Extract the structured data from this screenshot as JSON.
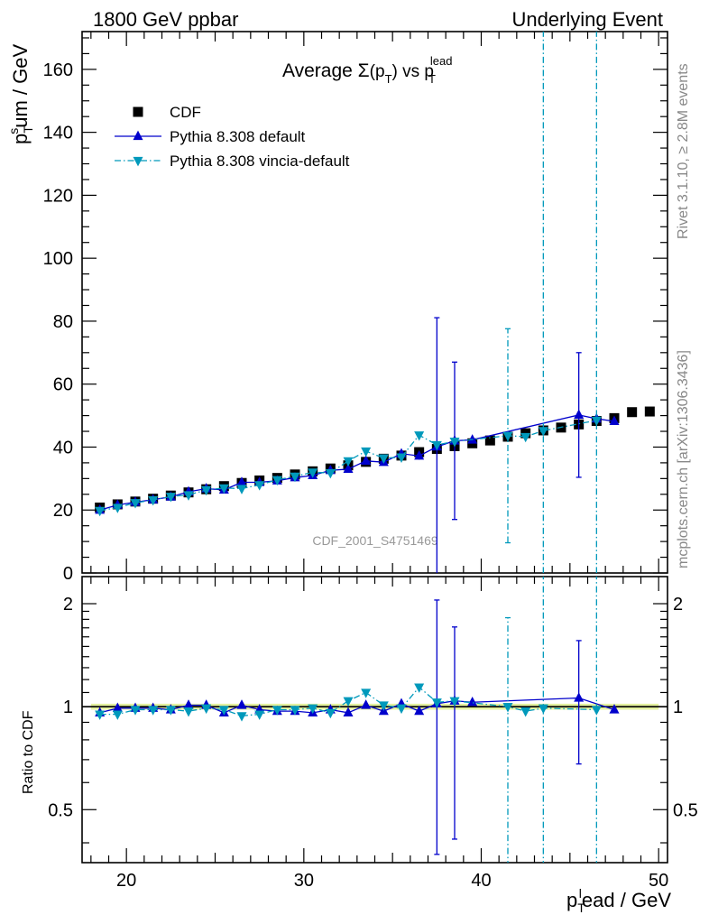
{
  "header": {
    "left": "1800 GeV ppbar",
    "right": "Underlying Event"
  },
  "side_text": {
    "rivet": "Rivet 3.1.10, ≥ 2.8M events",
    "mcplots": "mcplots.cern.ch [arXiv:1306.3436]"
  },
  "watermark": "CDF_2001_S4751469",
  "main_title": {
    "prefix": "Average ",
    "sigma": "Σ",
    "open": "(p",
    "sub_t": "T",
    "close": ") vs p",
    "sub_t2": "T",
    "sup_lead": "lead"
  },
  "labels": {
    "ylabel_main": {
      "p": "p",
      "sub": "T",
      "sup": "s",
      "rest": "um / GeV"
    },
    "ylabel_ratio": "Ratio to CDF",
    "xlabel": {
      "p": "p",
      "sub": "T",
      "sup": "l",
      "rest": "ead / GeV"
    }
  },
  "chart_data": [
    {
      "type": "scatter",
      "panel": "main",
      "xlim": [
        17.5,
        50.5
      ],
      "ylim": [
        0,
        172
      ],
      "x_ticks": [
        20,
        30,
        40,
        50
      ],
      "y_ticks": [
        0,
        20,
        40,
        60,
        80,
        100,
        120,
        140,
        160
      ],
      "y_tick_labels": [
        "0",
        "20",
        "40",
        "60",
        "80",
        "100",
        "120",
        "140",
        "160"
      ],
      "legend_position": "top-left",
      "series": [
        {
          "name": "CDF",
          "color": "#000000",
          "marker": "square",
          "line": "none",
          "x": [
            18.5,
            19.5,
            20.5,
            21.5,
            22.5,
            23.5,
            24.5,
            25.5,
            26.5,
            27.5,
            28.5,
            29.5,
            30.5,
            31.5,
            32.5,
            33.5,
            34.5,
            35.5,
            36.5,
            37.5,
            38.5,
            39.5,
            40.5,
            41.5,
            42.5,
            43.5,
            44.5,
            45.5,
            46.5,
            47.5,
            48.5,
            49.5
          ],
          "y": [
            20.8,
            21.8,
            22.7,
            23.6,
            24.6,
            25.6,
            26.6,
            27.6,
            28.6,
            29.4,
            30.2,
            31.3,
            32.3,
            33.2,
            34.2,
            35.3,
            36.3,
            37.3,
            38.4,
            39.4,
            40.3,
            41.2,
            42.1,
            43.3,
            44.4,
            45.3,
            46.2,
            47.2,
            48.3,
            49.2,
            51.1,
            51.3
          ]
        },
        {
          "name": "Pythia 8.308 default",
          "color": "#0000cc",
          "marker": "triangle-up",
          "line": "solid",
          "x": [
            18.5,
            19.5,
            20.5,
            21.5,
            22.5,
            23.5,
            24.5,
            25.5,
            26.5,
            27.5,
            28.5,
            29.5,
            30.5,
            31.5,
            32.5,
            33.5,
            34.5,
            35.5,
            36.5,
            37.5,
            38.5,
            39.5,
            45.5,
            46.5,
            47.5
          ],
          "y": [
            20.0,
            21.6,
            22.5,
            23.3,
            24.2,
            25.8,
            26.8,
            26.4,
            28.8,
            28.8,
            29.3,
            30.3,
            31.0,
            32.6,
            33.0,
            35.6,
            35.2,
            37.9,
            37.2,
            40.1,
            42.0,
            42.3,
            50.2,
            49.0,
            48.2
          ],
          "err": [
            0.6,
            0.6,
            0.6,
            0.6,
            0.6,
            0.7,
            0.7,
            0.7,
            0.7,
            0.7,
            0.8,
            0.8,
            0.8,
            0.9,
            0.9,
            1.0,
            1.0,
            1.2,
            1.2,
            41.0,
            25.0,
            1.0,
            19.8,
            1.0,
            1.0
          ]
        },
        {
          "name": "Pythia 8.308 vincia-default",
          "color": "#0099bb",
          "marker": "triangle-down",
          "line": "dash-dot",
          "x": [
            18.5,
            19.5,
            20.5,
            21.5,
            22.5,
            23.5,
            24.5,
            25.5,
            26.5,
            27.5,
            28.5,
            29.5,
            30.5,
            31.5,
            32.5,
            33.5,
            34.5,
            35.5,
            36.5,
            37.5,
            38.5,
            41.5,
            42.5,
            43.5,
            46.5
          ],
          "y": [
            19.8,
            20.8,
            22.3,
            23.2,
            24.3,
            24.8,
            26.4,
            27.0,
            26.8,
            28.0,
            29.6,
            30.7,
            32.0,
            31.8,
            35.6,
            38.7,
            36.5,
            36.8,
            43.8,
            40.7,
            41.8,
            43.6,
            43.3,
            45.2,
            48.5
          ],
          "err": [
            0.6,
            0.6,
            0.6,
            0.6,
            0.6,
            0.7,
            0.7,
            0.7,
            0.7,
            0.7,
            0.8,
            0.8,
            0.8,
            0.9,
            0.9,
            1.0,
            1.0,
            1.2,
            1.2,
            1.3,
            1.3,
            34.0,
            1.0,
            999,
            999
          ]
        }
      ]
    },
    {
      "type": "scatter",
      "panel": "ratio",
      "xlim": [
        17.5,
        50.5
      ],
      "ylim": [
        0.35,
        2.4
      ],
      "yscale": "log",
      "x_ticks": [
        20,
        30,
        40,
        50
      ],
      "x_tick_labels": [
        "20",
        "30",
        "40",
        "50"
      ],
      "y_ticks": [
        0.5,
        1,
        2
      ],
      "y_tick_labels": [
        "0.5",
        "1",
        "2"
      ],
      "reference_line": 1,
      "band_color": "#ddee88",
      "series": [
        {
          "name": "Pythia 8.308 default",
          "color": "#0000cc",
          "marker": "triangle-up",
          "line": "solid",
          "x": [
            18.5,
            19.5,
            20.5,
            21.5,
            22.5,
            23.5,
            24.5,
            25.5,
            26.5,
            27.5,
            28.5,
            29.5,
            30.5,
            31.5,
            32.5,
            33.5,
            34.5,
            35.5,
            36.5,
            37.5,
            38.5,
            39.5,
            45.5,
            47.5
          ],
          "y": [
            0.96,
            0.99,
            0.99,
            0.99,
            0.98,
            1.01,
            1.01,
            0.96,
            1.01,
            0.98,
            0.97,
            0.97,
            0.96,
            0.98,
            0.96,
            1.01,
            0.97,
            1.02,
            0.97,
            1.02,
            1.04,
            1.03,
            1.06,
            0.98
          ],
          "err_low": [
            0.02,
            0.02,
            0.02,
            0.02,
            0.02,
            0.03,
            0.03,
            0.02,
            0.02,
            0.02,
            0.02,
            0.02,
            0.02,
            0.02,
            0.02,
            0.02,
            0.02,
            0.03,
            0.02,
            0.65,
            0.63,
            0.02,
            0.38,
            0.02
          ],
          "err_high": [
            0.02,
            0.02,
            0.02,
            0.02,
            0.02,
            0.03,
            0.03,
            0.02,
            0.02,
            0.02,
            0.02,
            0.02,
            0.02,
            0.02,
            0.02,
            0.02,
            0.02,
            0.03,
            0.02,
            1.03,
            0.67,
            0.02,
            0.5,
            0.02
          ]
        },
        {
          "name": "Pythia 8.308 vincia-default",
          "color": "#0099bb",
          "marker": "triangle-down",
          "line": "dash-dot",
          "x": [
            18.5,
            19.5,
            20.5,
            21.5,
            22.5,
            23.5,
            24.5,
            25.5,
            26.5,
            27.5,
            28.5,
            29.5,
            30.5,
            31.5,
            32.5,
            33.5,
            34.5,
            35.5,
            36.5,
            37.5,
            38.5,
            41.5,
            42.5,
            43.5,
            46.5
          ],
          "y": [
            0.95,
            0.95,
            0.98,
            0.98,
            0.98,
            0.97,
            0.99,
            0.98,
            0.94,
            0.95,
            0.98,
            0.98,
            0.99,
            0.96,
            1.04,
            1.1,
            1.01,
            0.99,
            1.14,
            1.03,
            1.04,
            1.0,
            0.97,
            0.99,
            0.98
          ],
          "err_low": [
            0.02,
            0.02,
            0.02,
            0.02,
            0.02,
            0.02,
            0.02,
            0.02,
            0.02,
            0.02,
            0.02,
            0.02,
            0.02,
            0.02,
            0.02,
            0.02,
            0.02,
            0.02,
            0.02,
            0.02,
            0.02,
            0.8,
            0.02,
            9,
            9
          ],
          "err_high": [
            0.02,
            0.02,
            0.02,
            0.02,
            0.02,
            0.02,
            0.02,
            0.02,
            0.02,
            0.02,
            0.02,
            0.02,
            0.02,
            0.02,
            0.02,
            0.02,
            0.02,
            0.02,
            0.02,
            0.02,
            0.02,
            0.82,
            0.02,
            9,
            9
          ]
        }
      ]
    }
  ]
}
